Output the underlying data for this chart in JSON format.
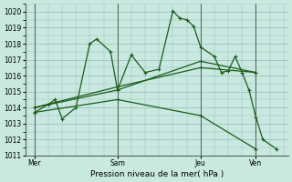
{
  "title": "Pression niveau de la mer( hPa )",
  "bg_color": "#c8e8e0",
  "grid_color": "#99bbbb",
  "line_color": "#1a5c1a",
  "ylim": [
    1011,
    1020.5
  ],
  "yticks": [
    1011,
    1012,
    1013,
    1014,
    1015,
    1016,
    1017,
    1018,
    1019,
    1020
  ],
  "xtick_labels": [
    "Mer",
    "Sam",
    "Jeu",
    "Ven"
  ],
  "xtick_positions": [
    0,
    72,
    144,
    192
  ],
  "vline_positions": [
    0,
    72,
    144,
    192
  ],
  "xlim": [
    -8,
    220
  ],
  "series_main": [
    [
      0,
      1013.7
    ],
    [
      12,
      1014.2
    ],
    [
      18,
      1014.5
    ],
    [
      24,
      1013.3
    ],
    [
      36,
      1014.0
    ],
    [
      48,
      1018.0
    ],
    [
      54,
      1018.3
    ],
    [
      66,
      1017.5
    ],
    [
      72,
      1015.1
    ],
    [
      84,
      1017.3
    ],
    [
      96,
      1016.2
    ],
    [
      108,
      1016.4
    ],
    [
      120,
      1020.05
    ],
    [
      126,
      1019.6
    ],
    [
      132,
      1019.5
    ],
    [
      138,
      1019.1
    ],
    [
      144,
      1017.8
    ],
    [
      156,
      1017.2
    ],
    [
      162,
      1016.2
    ],
    [
      168,
      1016.3
    ],
    [
      174,
      1017.2
    ],
    [
      180,
      1016.2
    ],
    [
      186,
      1015.1
    ],
    [
      192,
      1013.4
    ],
    [
      198,
      1012.0
    ],
    [
      210,
      1011.4
    ]
  ],
  "series_trend1": [
    [
      0,
      1014.0
    ],
    [
      72,
      1015.3
    ],
    [
      144,
      1016.5
    ],
    [
      192,
      1016.2
    ]
  ],
  "series_trend2": [
    [
      0,
      1014.0
    ],
    [
      72,
      1015.1
    ],
    [
      144,
      1016.9
    ],
    [
      192,
      1016.2
    ]
  ],
  "series_trend3": [
    [
      0,
      1013.7
    ],
    [
      72,
      1014.5
    ],
    [
      144,
      1013.5
    ],
    [
      192,
      1011.4
    ]
  ]
}
